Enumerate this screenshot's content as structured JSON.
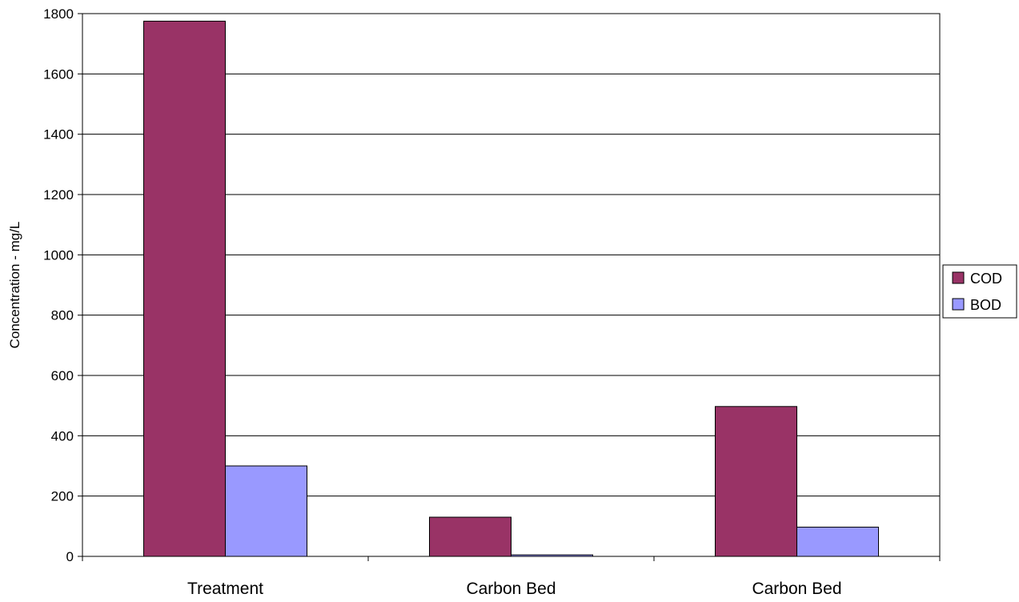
{
  "chart_data": {
    "type": "bar",
    "title": "",
    "xlabel": "",
    "ylabel": "Concentration - mg/L",
    "categories": [
      "Treatment",
      "Carbon Bed",
      "Carbon Bed"
    ],
    "series": [
      {
        "name": "COD",
        "color": "#993366",
        "values": [
          1775,
          130,
          497
        ]
      },
      {
        "name": "BOD",
        "color": "#9999ff",
        "values": [
          300,
          5,
          97
        ]
      }
    ],
    "ylim": [
      0,
      1800
    ],
    "yticks": [
      0,
      200,
      400,
      600,
      800,
      1000,
      1200,
      1400,
      1600,
      1800
    ],
    "grid": true,
    "legend_position": "right"
  }
}
